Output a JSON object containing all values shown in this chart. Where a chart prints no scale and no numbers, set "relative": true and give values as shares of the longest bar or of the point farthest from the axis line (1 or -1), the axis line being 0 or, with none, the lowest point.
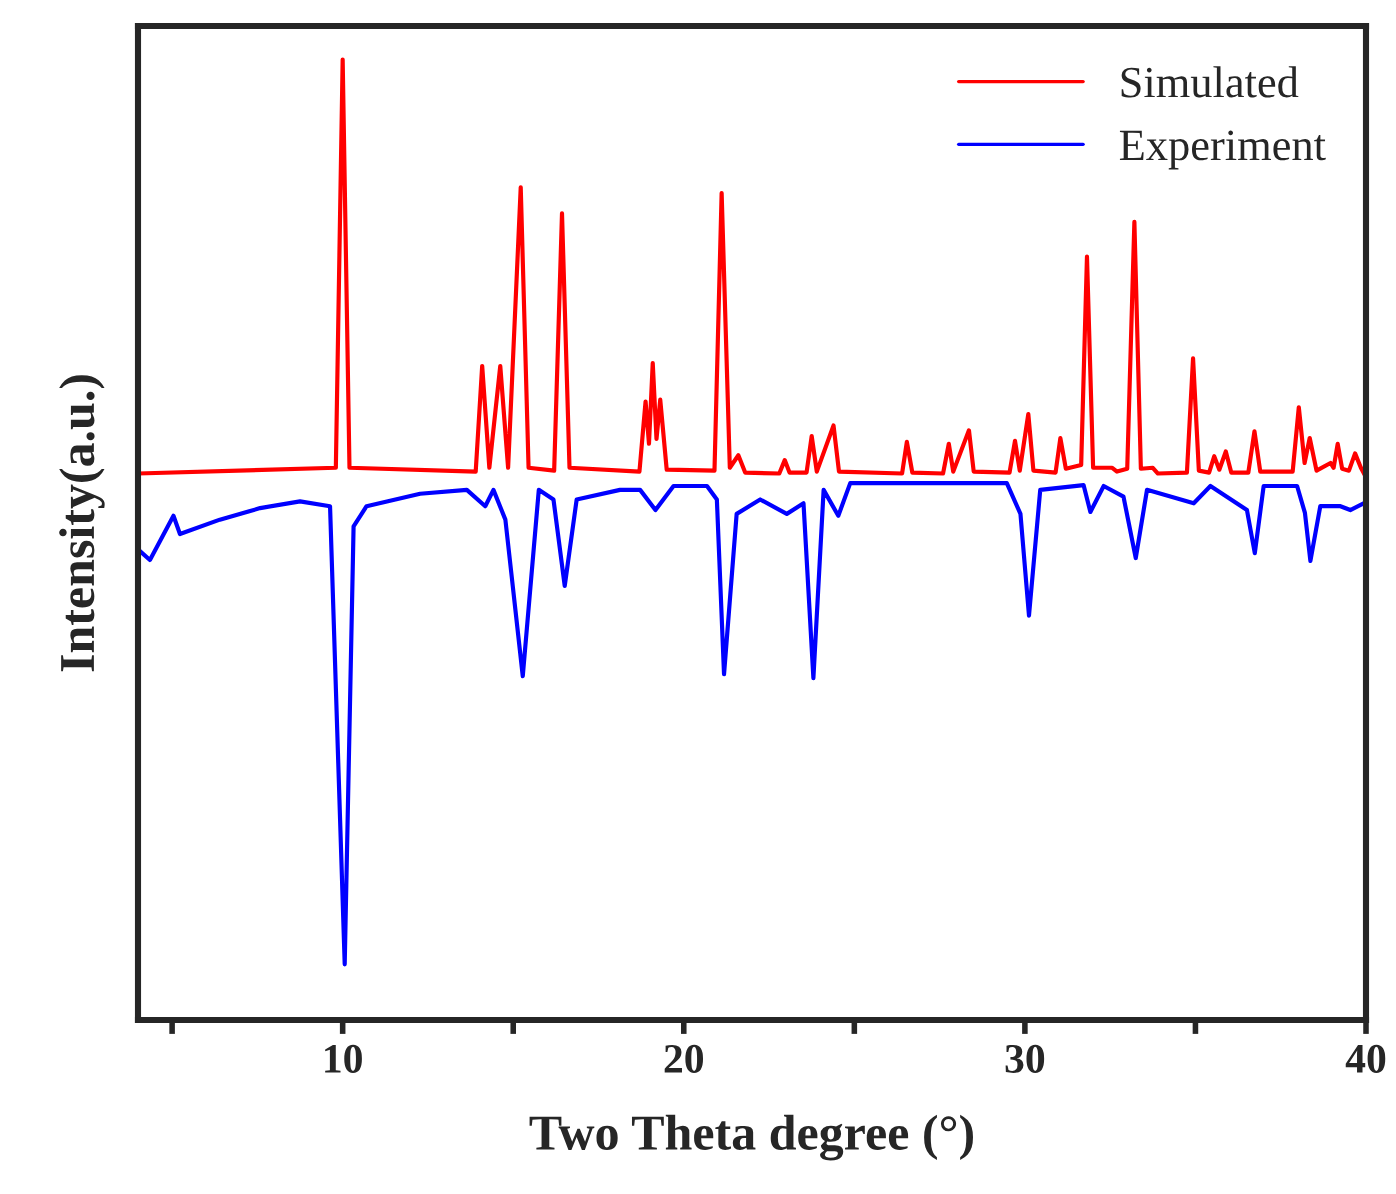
{
  "chart_data": {
    "type": "line",
    "relative": true,
    "xlabel": "Two Theta degree (°)",
    "ylabel": "Intensity(a.u.)",
    "xlim": [
      4,
      40
    ],
    "xticks": [
      {
        "value": 5,
        "label": null
      },
      10,
      {
        "value": 15,
        "label": null
      },
      20,
      {
        "value": 25,
        "label": null
      },
      30,
      {
        "value": 35,
        "label": null
      },
      40
    ],
    "tick_labels": "x",
    "grid": false,
    "legend": "top right",
    "marker": "none",
    "line_style": "solid",
    "series": [
      {
        "name": "Simulated",
        "color": "#ff0000",
        "x": [
          4,
          9.8,
          10.0,
          10.2,
          13.9,
          14.09,
          14.3,
          14.62,
          14.85,
          15.22,
          15.45,
          16.2,
          16.43,
          16.65,
          18.7,
          18.88,
          18.98,
          19.09,
          19.2,
          19.31,
          19.5,
          20.9,
          21.11,
          21.35,
          21.6,
          21.8,
          22.8,
          22.96,
          23.1,
          23.6,
          23.75,
          23.9,
          24.39,
          24.55,
          26.4,
          26.54,
          26.7,
          27.6,
          27.77,
          27.9,
          28.36,
          28.5,
          29.55,
          29.71,
          29.85,
          30.1,
          30.25,
          30.9,
          31.04,
          31.2,
          31.65,
          31.82,
          32.0,
          32.56,
          32.7,
          33.0,
          33.21,
          33.4,
          33.75,
          33.9,
          34.75,
          34.93,
          35.1,
          35.4,
          35.55,
          35.7,
          35.89,
          36.05,
          36.55,
          36.73,
          36.9,
          37.85,
          38.03,
          38.2,
          38.35,
          38.55,
          38.96,
          39.05,
          39.17,
          39.3,
          39.5,
          39.68,
          39.85,
          40
        ],
        "values": [
          0.569,
          0.575,
          1.0,
          0.575,
          0.571,
          0.681,
          0.575,
          0.681,
          0.575,
          0.867,
          0.575,
          0.572,
          0.84,
          0.575,
          0.571,
          0.644,
          0.6,
          0.684,
          0.605,
          0.646,
          0.573,
          0.572,
          0.861,
          0.575,
          0.588,
          0.57,
          0.569,
          0.583,
          0.57,
          0.57,
          0.608,
          0.571,
          0.619,
          0.571,
          0.569,
          0.602,
          0.57,
          0.569,
          0.6,
          0.571,
          0.614,
          0.571,
          0.57,
          0.603,
          0.572,
          0.631,
          0.572,
          0.57,
          0.606,
          0.574,
          0.578,
          0.795,
          0.575,
          0.575,
          0.571,
          0.574,
          0.831,
          0.574,
          0.575,
          0.569,
          0.57,
          0.689,
          0.572,
          0.57,
          0.587,
          0.573,
          0.592,
          0.57,
          0.57,
          0.613,
          0.571,
          0.571,
          0.638,
          0.58,
          0.606,
          0.572,
          0.58,
          0.575,
          0.6,
          0.574,
          0.572,
          0.59,
          0.575,
          0.565
        ]
      },
      {
        "name": "Experiment",
        "color": "#0000ff",
        "x": [
          4.0,
          4.35,
          5.04,
          5.23,
          6.4,
          7.58,
          8.75,
          9.63,
          10.06,
          10.32,
          10.7,
          12.27,
          13.64,
          14.18,
          14.42,
          14.77,
          15.28,
          15.75,
          16.18,
          16.51,
          16.86,
          18.13,
          18.72,
          19.17,
          19.7,
          20.68,
          20.97,
          21.18,
          21.55,
          22.24,
          23.02,
          23.51,
          23.8,
          24.1,
          24.53,
          24.88,
          26.93,
          29.47,
          29.87,
          30.12,
          30.45,
          31.72,
          31.92,
          32.31,
          32.89,
          33.25,
          33.58,
          34.95,
          35.44,
          36.51,
          36.74,
          37.0,
          37.98,
          38.21,
          38.37,
          38.66,
          39.25,
          39.54,
          39.93
        ],
        "values": [
          0.49,
          0.479,
          0.525,
          0.506,
          0.521,
          0.533,
          0.54,
          0.535,
          0.058,
          0.514,
          0.535,
          0.548,
          0.552,
          0.535,
          0.552,
          0.521,
          0.358,
          0.552,
          0.542,
          0.452,
          0.542,
          0.552,
          0.552,
          0.531,
          0.556,
          0.556,
          0.542,
          0.36,
          0.527,
          0.542,
          0.527,
          0.538,
          0.356,
          0.552,
          0.525,
          0.559,
          0.559,
          0.559,
          0.527,
          0.421,
          0.552,
          0.557,
          0.529,
          0.556,
          0.545,
          0.481,
          0.552,
          0.538,
          0.556,
          0.531,
          0.486,
          0.556,
          0.556,
          0.528,
          0.478,
          0.535,
          0.535,
          0.531,
          0.538
        ]
      }
    ]
  }
}
